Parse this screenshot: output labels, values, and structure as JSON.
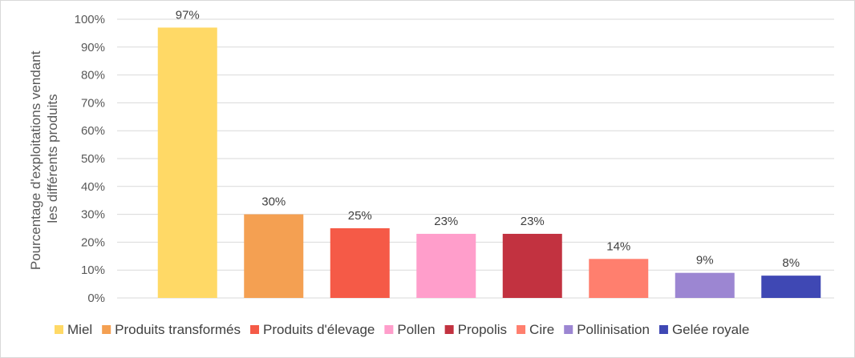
{
  "chart_data": {
    "type": "bar",
    "categories": [
      "Miel",
      "Produits transformés",
      "Produits d'élevage",
      "Pollen",
      "Propolis",
      "Cire",
      "Pollinisation",
      "Gelée royale"
    ],
    "values": [
      97,
      30,
      25,
      23,
      23,
      14,
      9,
      8
    ],
    "data_labels": [
      "97%",
      "30%",
      "25%",
      "23%",
      "23%",
      "14%",
      "9%",
      "8%"
    ],
    "colors": [
      "#FFD966",
      "#F4A052",
      "#F55A47",
      "#FF9ECB",
      "#C23240",
      "#FF7F6E",
      "#9C86D2",
      "#3F48B4"
    ],
    "ylabel_lines": [
      "Pourcentage d'exploitations vendant",
      "les différents produits"
    ],
    "ylim": [
      0,
      100
    ],
    "yticks": [
      0,
      10,
      20,
      30,
      40,
      50,
      60,
      70,
      80,
      90,
      100
    ],
    "ytick_labels": [
      "0%",
      "10%",
      "20%",
      "30%",
      "40%",
      "50%",
      "60%",
      "70%",
      "80%",
      "90%",
      "100%"
    ],
    "grid": true,
    "legend_position": "bottom"
  }
}
